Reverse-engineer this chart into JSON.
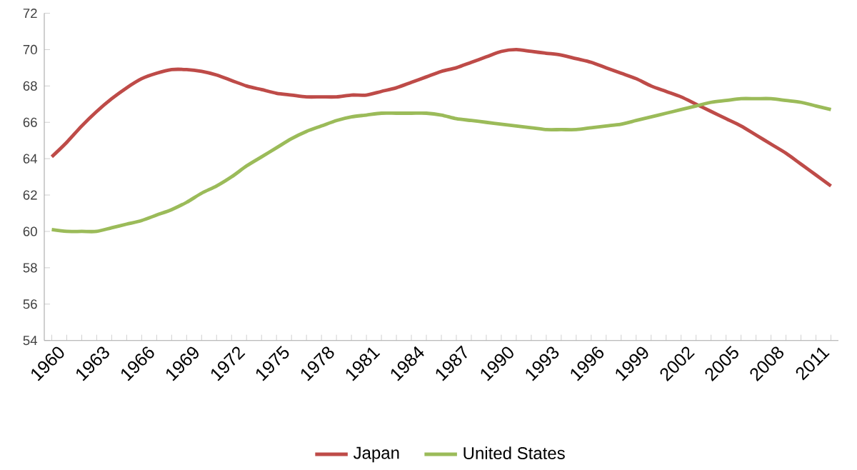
{
  "chart_data": {
    "type": "line",
    "categories": [
      "1960",
      null,
      null,
      "1963",
      null,
      null,
      "1966",
      null,
      null,
      "1969",
      null,
      null,
      "1972",
      null,
      null,
      "1975",
      null,
      null,
      "1978",
      null,
      null,
      "1981",
      null,
      null,
      "1984",
      null,
      null,
      "1987",
      null,
      null,
      "1990",
      null,
      null,
      "1993",
      null,
      null,
      "1996",
      null,
      null,
      "1999",
      null,
      null,
      "2002",
      null,
      null,
      "2005",
      null,
      null,
      "2008",
      null,
      null,
      "2011",
      null
    ],
    "series": [
      {
        "name": "Japan",
        "color": "#be4b48",
        "values": [
          64.1,
          64.9,
          65.8,
          66.6,
          67.3,
          67.9,
          68.4,
          68.7,
          68.9,
          68.9,
          68.8,
          68.6,
          68.3,
          68.0,
          67.8,
          67.6,
          67.5,
          67.4,
          67.4,
          67.4,
          67.5,
          67.5,
          67.7,
          67.9,
          68.2,
          68.5,
          68.8,
          69.0,
          69.3,
          69.6,
          69.9,
          70.0,
          69.9,
          69.8,
          69.7,
          69.5,
          69.3,
          69.0,
          68.7,
          68.4,
          68.0,
          67.7,
          67.4,
          67.0,
          66.6,
          66.2,
          65.8,
          65.3,
          64.8,
          64.3,
          63.7,
          63.1,
          62.5
        ]
      },
      {
        "name": "United States",
        "color": "#9bbb59",
        "values": [
          60.1,
          60.0,
          60.0,
          60.0,
          60.2,
          60.4,
          60.6,
          60.9,
          61.2,
          61.6,
          62.1,
          62.5,
          63.0,
          63.6,
          64.1,
          64.6,
          65.1,
          65.5,
          65.8,
          66.1,
          66.3,
          66.4,
          66.5,
          66.5,
          66.5,
          66.5,
          66.4,
          66.2,
          66.1,
          66.0,
          65.9,
          65.8,
          65.7,
          65.6,
          65.6,
          65.6,
          65.7,
          65.8,
          65.9,
          66.1,
          66.3,
          66.5,
          66.7,
          66.9,
          67.1,
          67.2,
          67.3,
          67.3,
          67.3,
          67.2,
          67.1,
          66.9,
          66.7
        ]
      }
    ],
    "ylim": [
      54,
      72
    ],
    "yticks": [
      54,
      56,
      58,
      60,
      62,
      64,
      66,
      68,
      70,
      72
    ],
    "legend": "bottom",
    "grid": false,
    "marker": "none",
    "line_style": "solid"
  }
}
